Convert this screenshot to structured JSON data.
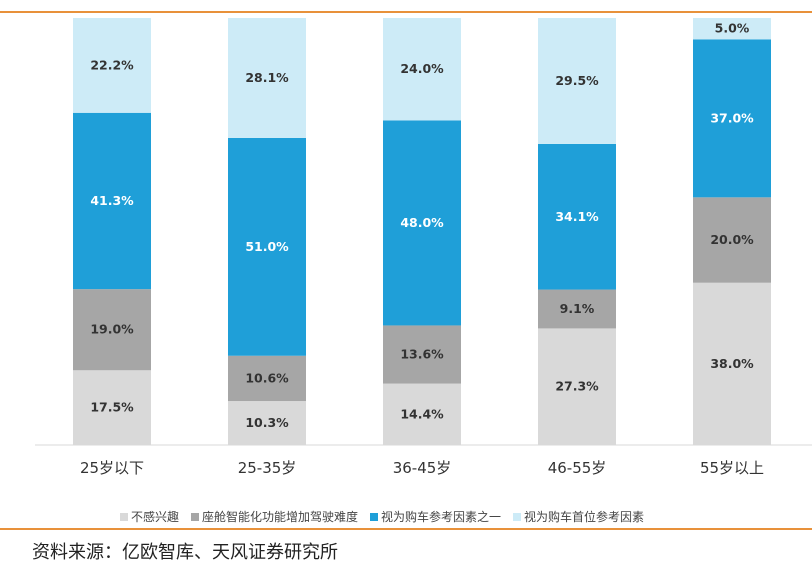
{
  "chart_data": {
    "type": "bar",
    "stacked": true,
    "percent": true,
    "categories": [
      "25岁以下",
      "25-35岁",
      "36-45岁",
      "46-55岁",
      "55岁以上"
    ],
    "series": [
      {
        "name": "不感兴趣",
        "color": "#D9D9D9",
        "text_color": "#333333",
        "values": [
          17.5,
          10.3,
          14.4,
          27.3,
          38.0
        ],
        "labels": [
          "17.5%",
          "10.3%",
          "14.4%",
          "27.3%",
          "38.0%"
        ]
      },
      {
        "name": "座舱智能化功能增加驾驶难度",
        "color": "#A6A6A6",
        "text_color": "#333333",
        "values": [
          19.0,
          10.6,
          13.6,
          9.1,
          20.0
        ],
        "labels": [
          "19.0%",
          "10.6%",
          "13.6%",
          "9.1%",
          "20.0%"
        ]
      },
      {
        "name": "视为购车参考因素之一",
        "color": "#1F9FD8",
        "text_color": "#ffffff",
        "values": [
          41.3,
          51.0,
          48.0,
          34.1,
          37.0
        ],
        "labels": [
          "41.3%",
          "51.0%",
          "48.0%",
          "34.1%",
          "37.0%"
        ]
      },
      {
        "name": "视为购车首位参考因素",
        "color": "#CDEBF7",
        "text_color": "#333333",
        "values": [
          22.2,
          28.1,
          24.0,
          29.5,
          5.0
        ],
        "labels": [
          "22.2%",
          "28.1%",
          "24.0%",
          "29.5%",
          "5.0%"
        ]
      }
    ],
    "ylim": [
      0,
      100
    ],
    "grid": false,
    "legend_position": "bottom"
  },
  "source_text": "资料来源：亿欧智库、天风证券研究所"
}
